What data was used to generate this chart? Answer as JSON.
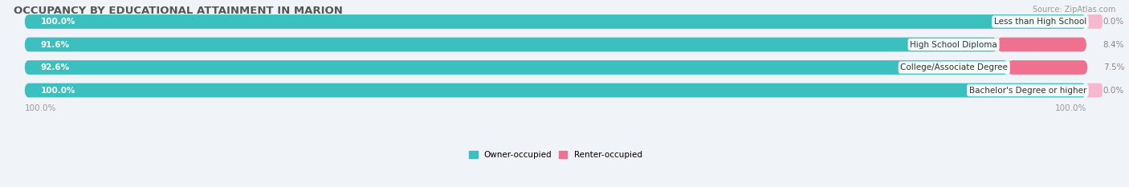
{
  "title": "OCCUPANCY BY EDUCATIONAL ATTAINMENT IN MARION",
  "source": "Source: ZipAtlas.com",
  "categories": [
    "Less than High School",
    "High School Diploma",
    "College/Associate Degree",
    "Bachelor's Degree or higher"
  ],
  "owner_values": [
    100.0,
    91.6,
    92.6,
    100.0
  ],
  "renter_values": [
    0.0,
    8.4,
    7.5,
    0.0
  ],
  "owner_color": "#3bbfbf",
  "renter_color": "#f07090",
  "renter_color_light": "#f5b8cc",
  "owner_label": "Owner-occupied",
  "renter_label": "Renter-occupied",
  "bg_color": "#f0f4f8",
  "bar_bg_color": "#dce6ee",
  "bar_height": 0.62,
  "title_fontsize": 9.5,
  "label_fontsize": 7.5,
  "tick_fontsize": 7.5,
  "source_fontsize": 7,
  "axis_label_left": "100.0%",
  "axis_label_right": "100.0%"
}
